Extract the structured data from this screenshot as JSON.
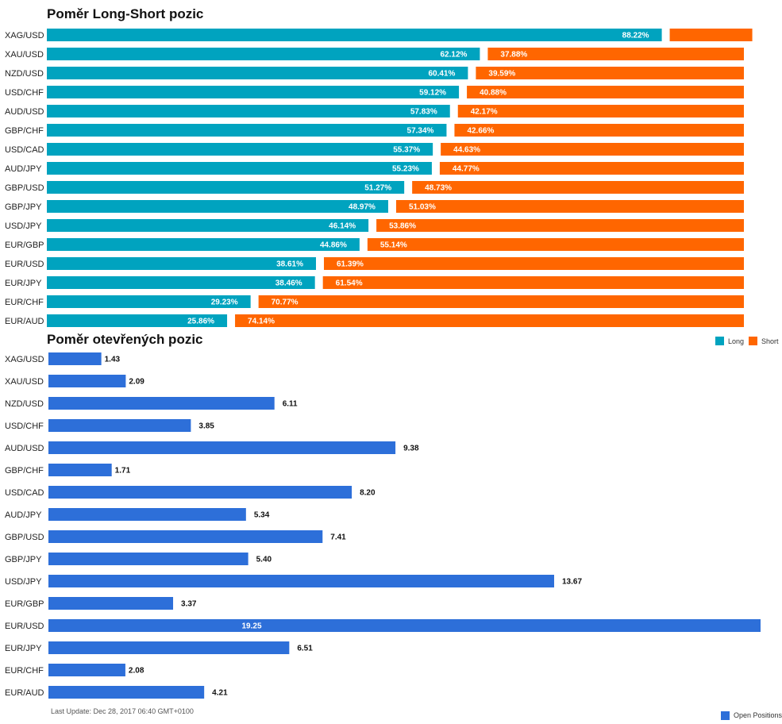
{
  "long_short_chart": {
    "title": "Poměr Long-Short pozic",
    "legend": [
      {
        "name": "Long",
        "color": "#00a3bf"
      },
      {
        "name": "Short",
        "color": "#ff6600"
      }
    ]
  },
  "open_positions_chart": {
    "title": "Poměr otevřených pozic",
    "legend": [
      {
        "name": "Open Positions",
        "color": "#2d6fd9"
      }
    ],
    "footer": "Last Update: Dec 28, 2017 06:40 GMT+0100"
  },
  "chart_data": [
    {
      "type": "bar",
      "orientation": "horizontal",
      "stacked": true,
      "title": "Poměr Long-Short pozic",
      "categories": [
        "XAG/USD",
        "XAU/USD",
        "NZD/USD",
        "USD/CHF",
        "AUD/USD",
        "GBP/CHF",
        "USD/CAD",
        "AUD/JPY",
        "GBP/USD",
        "GBP/JPY",
        "USD/JPY",
        "EUR/GBP",
        "EUR/USD",
        "EUR/JPY",
        "EUR/CHF",
        "EUR/AUD"
      ],
      "series": [
        {
          "name": "Long",
          "color": "#00a3bf",
          "values": [
            88.22,
            62.12,
            60.41,
            59.12,
            57.83,
            57.34,
            55.37,
            55.23,
            51.27,
            48.97,
            46.14,
            44.86,
            38.61,
            38.46,
            29.23,
            25.86
          ]
        },
        {
          "name": "Short",
          "color": "#ff6600",
          "values": [
            null,
            37.88,
            39.59,
            40.88,
            42.17,
            42.66,
            44.63,
            44.77,
            48.73,
            51.03,
            53.86,
            55.14,
            61.39,
            61.54,
            70.77,
            74.14
          ]
        }
      ],
      "value_suffix": "%",
      "xlim": [
        0,
        100
      ],
      "legend_position": "right"
    },
    {
      "type": "bar",
      "orientation": "horizontal",
      "title": "Poměr otevřených pozic",
      "categories": [
        "XAG/USD",
        "XAU/USD",
        "NZD/USD",
        "USD/CHF",
        "AUD/USD",
        "GBP/CHF",
        "USD/CAD",
        "AUD/JPY",
        "GBP/USD",
        "GBP/JPY",
        "USD/JPY",
        "EUR/GBP",
        "EUR/USD",
        "EUR/JPY",
        "EUR/CHF",
        "EUR/AUD"
      ],
      "series": [
        {
          "name": "Open Positions",
          "color": "#2d6fd9",
          "values": [
            1.43,
            2.09,
            6.11,
            3.85,
            9.38,
            1.71,
            8.2,
            5.34,
            7.41,
            5.4,
            13.67,
            3.37,
            19.25,
            6.51,
            2.08,
            4.21
          ]
        }
      ],
      "xlim": [
        0,
        19.25
      ],
      "legend_position": "bottom-right"
    }
  ]
}
